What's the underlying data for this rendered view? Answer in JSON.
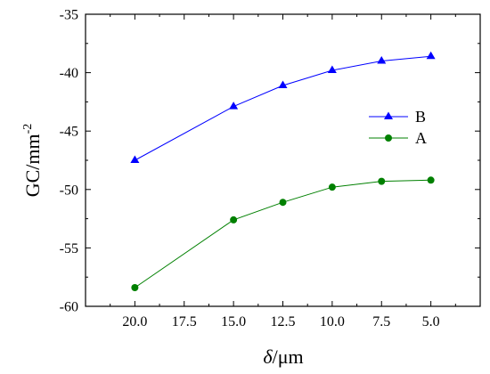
{
  "chart_data": {
    "type": "line",
    "title": "",
    "xlabel_symbol": "δ",
    "xlabel_unit": "/μm",
    "ylabel": "GC/mm",
    "ylabel_sup": "-2",
    "x_ticks": [
      "20.0",
      "17.5",
      "15.0",
      "12.5",
      "10.0",
      "7.5",
      "5.0"
    ],
    "y_ticks": [
      "-35",
      "-40",
      "-45",
      "-50",
      "-55",
      "-60"
    ],
    "xlim": [
      22.5,
      2.5
    ],
    "ylim": [
      -60,
      -35
    ],
    "x_reversed": true,
    "grid": false,
    "legend_position": "right",
    "series": [
      {
        "name": "B",
        "color": "#0000ff",
        "marker": "triangle",
        "x": [
          20.0,
          15.0,
          12.5,
          10.0,
          7.5,
          5.0
        ],
        "y": [
          -47.5,
          -42.9,
          -41.1,
          -39.8,
          -39.0,
          -38.6
        ]
      },
      {
        "name": "A",
        "color": "#008000",
        "marker": "circle",
        "x": [
          20.0,
          15.0,
          12.5,
          10.0,
          7.5,
          5.0
        ],
        "y": [
          -58.4,
          -52.6,
          -51.1,
          -49.8,
          -49.3,
          -49.2
        ]
      }
    ]
  }
}
